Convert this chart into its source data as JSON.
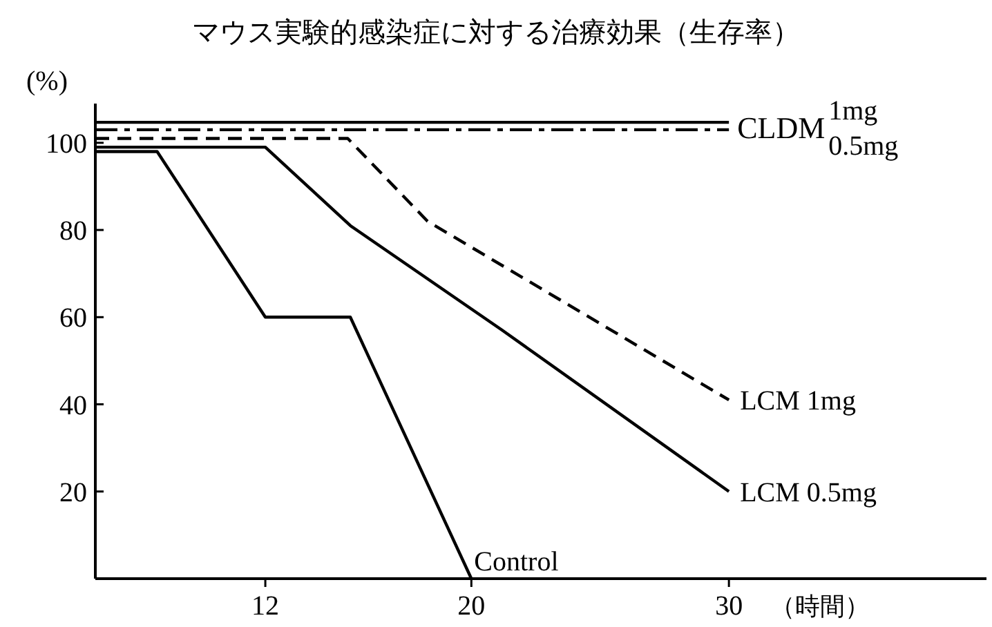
{
  "chart_data": {
    "type": "line",
    "title": "マウス実験的感染症に対する治療効果（生存率）",
    "xlabel": "（時間）",
    "ylabel": "(%)",
    "xlim": [
      5.4,
      40
    ],
    "ylim": [
      0,
      109
    ],
    "xticks": [
      12,
      20,
      30
    ],
    "yticks": [
      20,
      40,
      60,
      80,
      100
    ],
    "grid": false,
    "marker": "none",
    "series": [
      {
        "name": "1mg",
        "color": "#000000",
        "line_style": "solid",
        "x": [
          5.4,
          30
        ],
        "values": [
          104.7,
          104.7
        ]
      },
      {
        "name": "0.5mg",
        "color": "#000000",
        "line_style": "dashdot",
        "x": [
          5.4,
          30
        ],
        "values": [
          103,
          103
        ]
      },
      {
        "name": "LCM 1mg",
        "color": "#000000",
        "line_style": "dashed",
        "x": [
          5.4,
          15.2,
          18.3,
          30
        ],
        "values": [
          101,
          101,
          82,
          41
        ]
      },
      {
        "name": "LCM 0.5mg",
        "color": "#000000",
        "line_style": "solid",
        "x": [
          5.4,
          12,
          15.3,
          21.2,
          30
        ],
        "values": [
          99,
          99,
          81,
          57,
          20
        ]
      },
      {
        "name": "Control",
        "color": "#000000",
        "line_style": "solid",
        "x": [
          5.4,
          7.8,
          12,
          15.3,
          20
        ],
        "values": [
          98,
          98,
          60,
          60,
          0
        ]
      }
    ],
    "annotations": [
      {
        "text": "CLDM",
        "x": 30,
        "y": 104
      }
    ]
  }
}
